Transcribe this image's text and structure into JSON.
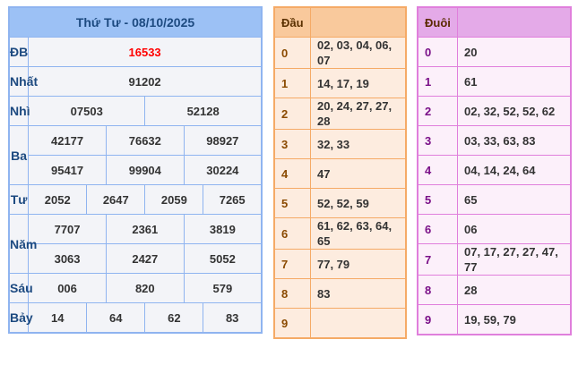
{
  "results": {
    "title": "Thứ Tư - 08/10/2025",
    "prizes": [
      {
        "label": "ĐB",
        "values": [
          "16533"
        ]
      },
      {
        "label": "Nhất",
        "values": [
          "91202"
        ]
      },
      {
        "label": "Nhì",
        "values": [
          "07503",
          "52128"
        ]
      },
      {
        "label": "Ba",
        "values": [
          "42177",
          "76632",
          "98927",
          "95417",
          "99904",
          "30224"
        ]
      },
      {
        "label": "Tư",
        "values": [
          "2052",
          "2647",
          "2059",
          "7265"
        ]
      },
      {
        "label": "Năm",
        "values": [
          "7707",
          "2361",
          "3819",
          "3063",
          "2427",
          "5052"
        ]
      },
      {
        "label": "Sáu",
        "values": [
          "006",
          "820",
          "579"
        ]
      },
      {
        "label": "Bảy",
        "values": [
          "14",
          "64",
          "62",
          "83"
        ]
      }
    ],
    "special_color": "#ff0000"
  },
  "dau": {
    "header": "Đầu",
    "rows": [
      {
        "k": "0",
        "v": "02, 03, 04, 06, 07"
      },
      {
        "k": "1",
        "v": "14, 17, 19"
      },
      {
        "k": "2",
        "v": "20, 24, 27, 27, 28"
      },
      {
        "k": "3",
        "v": "32, 33"
      },
      {
        "k": "4",
        "v": "47"
      },
      {
        "k": "5",
        "v": "52, 52, 59"
      },
      {
        "k": "6",
        "v": "61, 62, 63, 64, 65"
      },
      {
        "k": "7",
        "v": "77, 79"
      },
      {
        "k": "8",
        "v": "83"
      },
      {
        "k": "9",
        "v": ""
      }
    ]
  },
  "duoi": {
    "header": "Đuôi",
    "rows": [
      {
        "k": "0",
        "v": "20"
      },
      {
        "k": "1",
        "v": "61"
      },
      {
        "k": "2",
        "v": "02, 32, 52, 52, 62"
      },
      {
        "k": "3",
        "v": "03, 33, 63, 83"
      },
      {
        "k": "4",
        "v": "04, 14, 24, 64"
      },
      {
        "k": "5",
        "v": "65"
      },
      {
        "k": "6",
        "v": "06"
      },
      {
        "k": "7",
        "v": "07, 17, 27, 27, 47, 77"
      },
      {
        "k": "8",
        "v": "28"
      },
      {
        "k": "9",
        "v": "19, 59, 79"
      }
    ]
  }
}
